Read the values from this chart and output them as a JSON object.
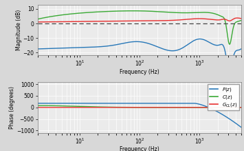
{
  "xlabel": "Frequency (Hz)",
  "ylabel_mag": "Magnitude (dB)",
  "ylabel_phase": "Phase (degrees)",
  "freq_range": [
    2,
    5000
  ],
  "mag_ylim": [
    -22,
    13
  ],
  "phase_ylim": [
    -1100,
    1100
  ],
  "mag_yticks": [
    -20,
    -10,
    0,
    10
  ],
  "phase_yticks": [
    -1000,
    -500,
    0,
    500,
    1000
  ],
  "colors": {
    "P": "#2878b8",
    "C": "#3aaa35",
    "Gcl": "#e83030"
  },
  "background_color": "#ebebeb",
  "grid_color": "#ffffff"
}
